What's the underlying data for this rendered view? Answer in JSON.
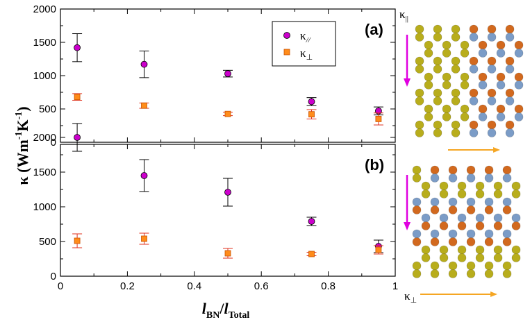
{
  "chart_data": [
    {
      "type": "scatter",
      "panel_label": "(a)",
      "x": [
        0.05,
        0.25,
        0.5,
        0.75,
        0.95
      ],
      "series": [
        {
          "name": "κ//",
          "values": [
            1420,
            1170,
            1030,
            610,
            470
          ],
          "errors": [
            210,
            200,
            50,
            60,
            60
          ],
          "color": "#cc00cc",
          "marker": "circle"
        },
        {
          "name": "κ⊥",
          "values": [
            680,
            550,
            425,
            420,
            350
          ],
          "errors": [
            50,
            40,
            25,
            70,
            90
          ],
          "color": "#ff8c1a",
          "marker": "square"
        }
      ],
      "xlim": [
        0,
        1
      ],
      "ylim": [
        0,
        2000
      ],
      "yticks": [
        "0",
        "500",
        "1000",
        "1500",
        "2000"
      ],
      "legend": {
        "placement": "top-right",
        "entries": [
          "κ",
          "κ"
        ],
        "subscripts": [
          "//",
          "⊥"
        ]
      }
    },
    {
      "type": "scatter",
      "panel_label": "(b)",
      "x": [
        0.05,
        0.25,
        0.5,
        0.75,
        0.95
      ],
      "series": [
        {
          "name": "κ//",
          "values": [
            2000,
            1450,
            1210,
            790,
            430
          ],
          "errors": [
            200,
            230,
            200,
            60,
            90
          ],
          "color": "#cc00cc",
          "marker": "circle"
        },
        {
          "name": "κ⊥",
          "values": [
            510,
            540,
            330,
            320,
            380
          ],
          "errors": [
            100,
            80,
            70,
            25,
            60
          ],
          "color": "#ff8c1a",
          "marker": "square"
        }
      ],
      "xlim": [
        0,
        1
      ],
      "ylim": [
        0,
        2500
      ],
      "yticks": [
        "0",
        "500",
        "1000",
        "1500",
        "2000"
      ],
      "xticks": [
        "0",
        "0.2",
        "0.4",
        "0.6",
        "0.8",
        "1"
      ]
    }
  ],
  "axis": {
    "ylabel_main": "κ (Wm",
    "ylabel_exp1": "-1",
    "ylabel_mid": "K",
    "ylabel_exp2": "-1",
    "ylabel_close": ")",
    "xlabel_l1": "l",
    "xlabel_sub1": "BN",
    "xlabel_slash": "/",
    "xlabel_l2": "l",
    "xlabel_sub2": "Total"
  },
  "structures": {
    "top_label": "κ",
    "top_sub": "||",
    "bottom_label": "κ",
    "bottom_sub": "⊥",
    "colors": {
      "carbon": "#b8ad1c",
      "boron": "#d2691e",
      "nitrogen": "#7b9cc7",
      "arrow_parallel": "#e000e0",
      "arrow_perp": "#f5a623"
    }
  }
}
